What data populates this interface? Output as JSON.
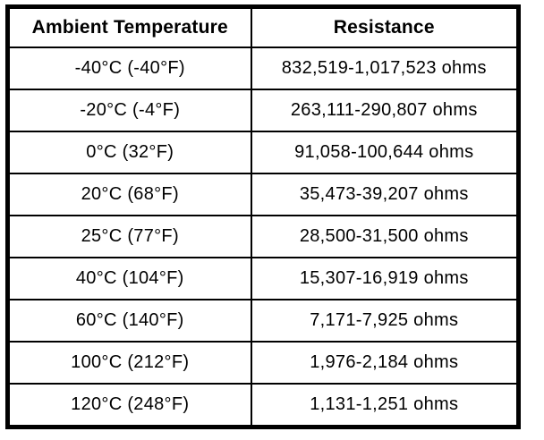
{
  "chart_data": {
    "type": "table",
    "title": "",
    "columns": [
      "Ambient Temperature",
      "Resistance"
    ],
    "rows": [
      {
        "temperature": "-40°C (-40°F)",
        "resistance": "832,519-1,017,523 ohms"
      },
      {
        "temperature": "-20°C (-4°F)",
        "resistance": "263,111-290,807 ohms"
      },
      {
        "temperature": "0°C (32°F)",
        "resistance": "91,058-100,644 ohms"
      },
      {
        "temperature": "20°C (68°F)",
        "resistance": "35,473-39,207 ohms"
      },
      {
        "temperature": "25°C (77°F)",
        "resistance": "28,500-31,500 ohms"
      },
      {
        "temperature": "40°C (104°F)",
        "resistance": "15,307-16,919 ohms"
      },
      {
        "temperature": "60°C (140°F)",
        "resistance": "7,171-7,925 ohms"
      },
      {
        "temperature": "100°C (212°F)",
        "resistance": "1,976-2,184 ohms"
      },
      {
        "temperature": "120°C (248°F)",
        "resistance": "1,131-1,251 ohms"
      }
    ],
    "temperature_c": [
      -40,
      -20,
      0,
      20,
      25,
      40,
      60,
      100,
      120
    ],
    "temperature_f": [
      -40,
      -4,
      32,
      68,
      77,
      104,
      140,
      212,
      248
    ],
    "resistance_min_ohms": [
      832519,
      263111,
      91058,
      35473,
      28500,
      15307,
      7171,
      1976,
      1131
    ],
    "resistance_max_ohms": [
      1017523,
      290807,
      100644,
      39207,
      31500,
      16919,
      7925,
      2184,
      1251
    ],
    "colors": {
      "border": "#000000",
      "background": "#ffffff",
      "text": "#000000"
    }
  }
}
